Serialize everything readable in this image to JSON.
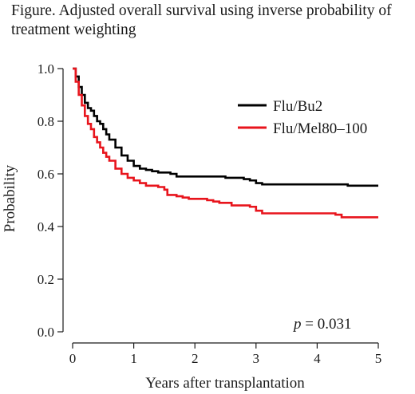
{
  "chart_data": {
    "type": "line",
    "title": "Figure. Adjusted overall survival using inverse probability of treatment weighting",
    "xlabel": "Years after transplantation",
    "ylabel": "Probability",
    "xlim": [
      0,
      5
    ],
    "ylim": [
      0,
      1.0
    ],
    "x_ticks": [
      "0",
      "1",
      "2",
      "3",
      "4",
      "5"
    ],
    "y_ticks": [
      "0.0",
      "0.2",
      "0.4",
      "0.6",
      "0.8",
      "1.0"
    ],
    "grid": false,
    "legend_position": "top-right",
    "annotation": {
      "italic": "p",
      "text": " = 0.031"
    },
    "series": [
      {
        "name": "Flu/Bu2",
        "color": "#000000",
        "points": [
          [
            0,
            1.0
          ],
          [
            0.05,
            0.97
          ],
          [
            0.1,
            0.93
          ],
          [
            0.15,
            0.9
          ],
          [
            0.2,
            0.87
          ],
          [
            0.25,
            0.85
          ],
          [
            0.3,
            0.84
          ],
          [
            0.35,
            0.82
          ],
          [
            0.4,
            0.8
          ],
          [
            0.45,
            0.79
          ],
          [
            0.5,
            0.77
          ],
          [
            0.55,
            0.75
          ],
          [
            0.6,
            0.73
          ],
          [
            0.7,
            0.7
          ],
          [
            0.8,
            0.67
          ],
          [
            0.9,
            0.65
          ],
          [
            1.0,
            0.63
          ],
          [
            1.1,
            0.62
          ],
          [
            1.2,
            0.615
          ],
          [
            1.3,
            0.61
          ],
          [
            1.4,
            0.605
          ],
          [
            1.6,
            0.6
          ],
          [
            1.7,
            0.59
          ],
          [
            2.0,
            0.59
          ],
          [
            2.4,
            0.59
          ],
          [
            2.5,
            0.585
          ],
          [
            2.8,
            0.58
          ],
          [
            2.9,
            0.575
          ],
          [
            3.0,
            0.565
          ],
          [
            3.1,
            0.56
          ],
          [
            3.5,
            0.56
          ],
          [
            4.0,
            0.56
          ],
          [
            4.4,
            0.56
          ],
          [
            4.5,
            0.555
          ],
          [
            5.0,
            0.555
          ]
        ]
      },
      {
        "name": "Flu/Mel80–100",
        "color": "#e8141c",
        "points": [
          [
            0,
            1.0
          ],
          [
            0.05,
            0.95
          ],
          [
            0.1,
            0.9
          ],
          [
            0.15,
            0.86
          ],
          [
            0.2,
            0.82
          ],
          [
            0.25,
            0.79
          ],
          [
            0.3,
            0.77
          ],
          [
            0.35,
            0.74
          ],
          [
            0.4,
            0.72
          ],
          [
            0.45,
            0.7
          ],
          [
            0.5,
            0.68
          ],
          [
            0.55,
            0.665
          ],
          [
            0.6,
            0.65
          ],
          [
            0.7,
            0.62
          ],
          [
            0.8,
            0.6
          ],
          [
            0.9,
            0.585
          ],
          [
            1.0,
            0.575
          ],
          [
            1.1,
            0.565
          ],
          [
            1.2,
            0.555
          ],
          [
            1.4,
            0.55
          ],
          [
            1.5,
            0.54
          ],
          [
            1.55,
            0.52
          ],
          [
            1.7,
            0.515
          ],
          [
            1.8,
            0.51
          ],
          [
            1.9,
            0.505
          ],
          [
            2.2,
            0.5
          ],
          [
            2.3,
            0.495
          ],
          [
            2.4,
            0.49
          ],
          [
            2.6,
            0.48
          ],
          [
            2.9,
            0.475
          ],
          [
            3.0,
            0.46
          ],
          [
            3.1,
            0.45
          ],
          [
            3.5,
            0.45
          ],
          [
            4.0,
            0.45
          ],
          [
            4.3,
            0.445
          ],
          [
            4.4,
            0.435
          ],
          [
            5.0,
            0.435
          ]
        ]
      }
    ]
  }
}
